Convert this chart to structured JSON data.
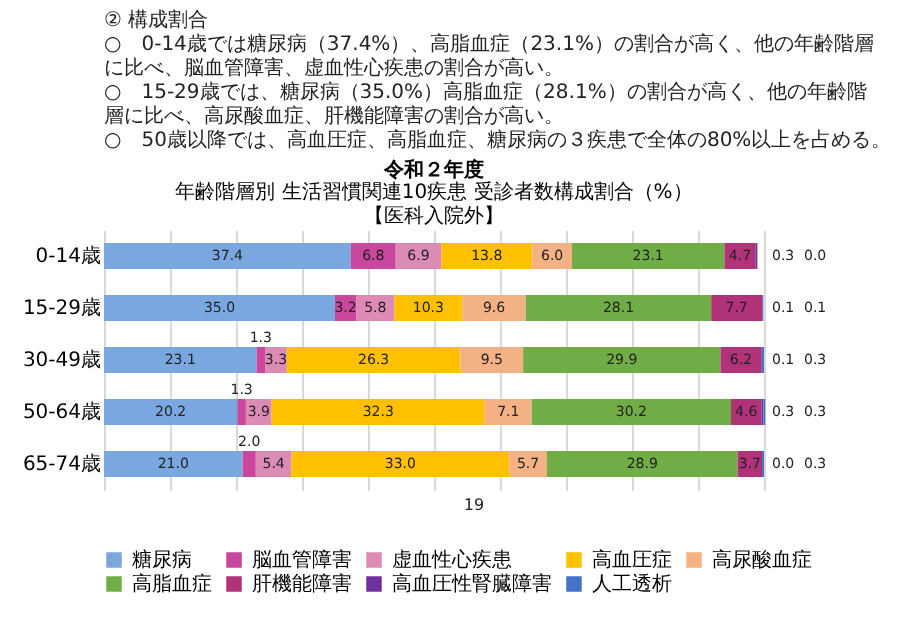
{
  "chart_data": {
    "type": "bar",
    "orientation": "horizontal",
    "stacked": true,
    "title": "令和２年度",
    "subtitle": "年齢階層別 生活習慣関連10疾患 受診者数構成割合（%）",
    "annotations": [
      "② 構成割合",
      "○　0-14歳では糖尿病（37.4%）、高脂血症（23.1%）の割合が高く、他の年齢階層に比べ、脳血管障害、虚血性心疾患の割合が高い。",
      "○　15-29歳では、糖尿病（35.0%）高脂血症（28.1%）の割合が高く、他の年齢階層に比べ、高尿酸血症、肝機能障害の割合が高い。",
      "○　50歳以降では、高血圧症、高脂血症、糖尿病の３疾患で全体の80%以上を占める。",
      "【医科入院外】",
      "19"
    ],
    "categories": [
      "0-14歳",
      "15-29歳",
      "30-49歳",
      "50-64歳",
      "65-74歳"
    ],
    "series": [
      {
        "name": "糖尿病",
        "color": "#7ba7e0",
        "values": [
          37.4,
          35.0,
          23.1,
          20.2,
          21.0
        ],
        "value_labels": [
          "37.4",
          "35.0",
          "23.1",
          "20.2",
          "21.0"
        ]
      },
      {
        "name": "脳血管障害",
        "color": "#c9479d",
        "values": [
          6.8,
          3.2,
          1.3,
          1.3,
          2.0
        ],
        "value_labels": [
          "6.8",
          "3.2",
          "1.3",
          "1.3",
          "2.0"
        ]
      },
      {
        "name": "虚血性心疾患",
        "color": "#dc8bb5",
        "values": [
          6.9,
          5.8,
          3.3,
          3.9,
          5.4
        ],
        "value_labels": [
          "6.9",
          "5.8",
          "3.3",
          "3.9",
          "5.4"
        ]
      },
      {
        "name": "高血圧症",
        "color": "#ffc000",
        "values": [
          13.8,
          10.3,
          26.3,
          32.3,
          33.0
        ],
        "value_labels": [
          "13.8",
          "10.3",
          "26.3",
          "32.3",
          "33.0"
        ]
      },
      {
        "name": "高尿酸血症",
        "color": "#f4b183",
        "values": [
          6.0,
          9.6,
          9.5,
          7.1,
          5.7
        ],
        "value_labels": [
          "6.0",
          "9.6",
          "9.5",
          "7.1",
          "5.7"
        ]
      },
      {
        "name": "高脂血症",
        "color": "#70ad47",
        "values": [
          23.1,
          28.1,
          29.9,
          30.2,
          28.9
        ],
        "value_labels": [
          "23.1",
          "28.1",
          "29.9",
          "30.2",
          "28.9"
        ]
      },
      {
        "name": "肝機能障害",
        "color": "#b0337a",
        "values": [
          4.7,
          7.7,
          6.2,
          4.6,
          3.7
        ],
        "value_labels": [
          "4.7",
          "7.7",
          "6.2",
          "4.6",
          "3.7"
        ]
      },
      {
        "name": "高血圧性腎臓障害",
        "color": "#7030a0",
        "values": [
          0.3,
          0.1,
          0.1,
          0.3,
          0.0
        ],
        "value_labels": [
          "0.3",
          "0.1",
          "0.1",
          "0.3",
          "0.0"
        ]
      },
      {
        "name": "人工透析",
        "color": "#4472c4",
        "values": [
          0.0,
          0.1,
          0.3,
          0.3,
          0.3
        ],
        "value_labels": [
          "0.0",
          "0.1",
          "0.3",
          "0.3",
          "0.3"
        ]
      }
    ],
    "xlim": [
      0,
      100
    ],
    "grid": "x",
    "legend": "bottom",
    "tick_labels": "y"
  }
}
